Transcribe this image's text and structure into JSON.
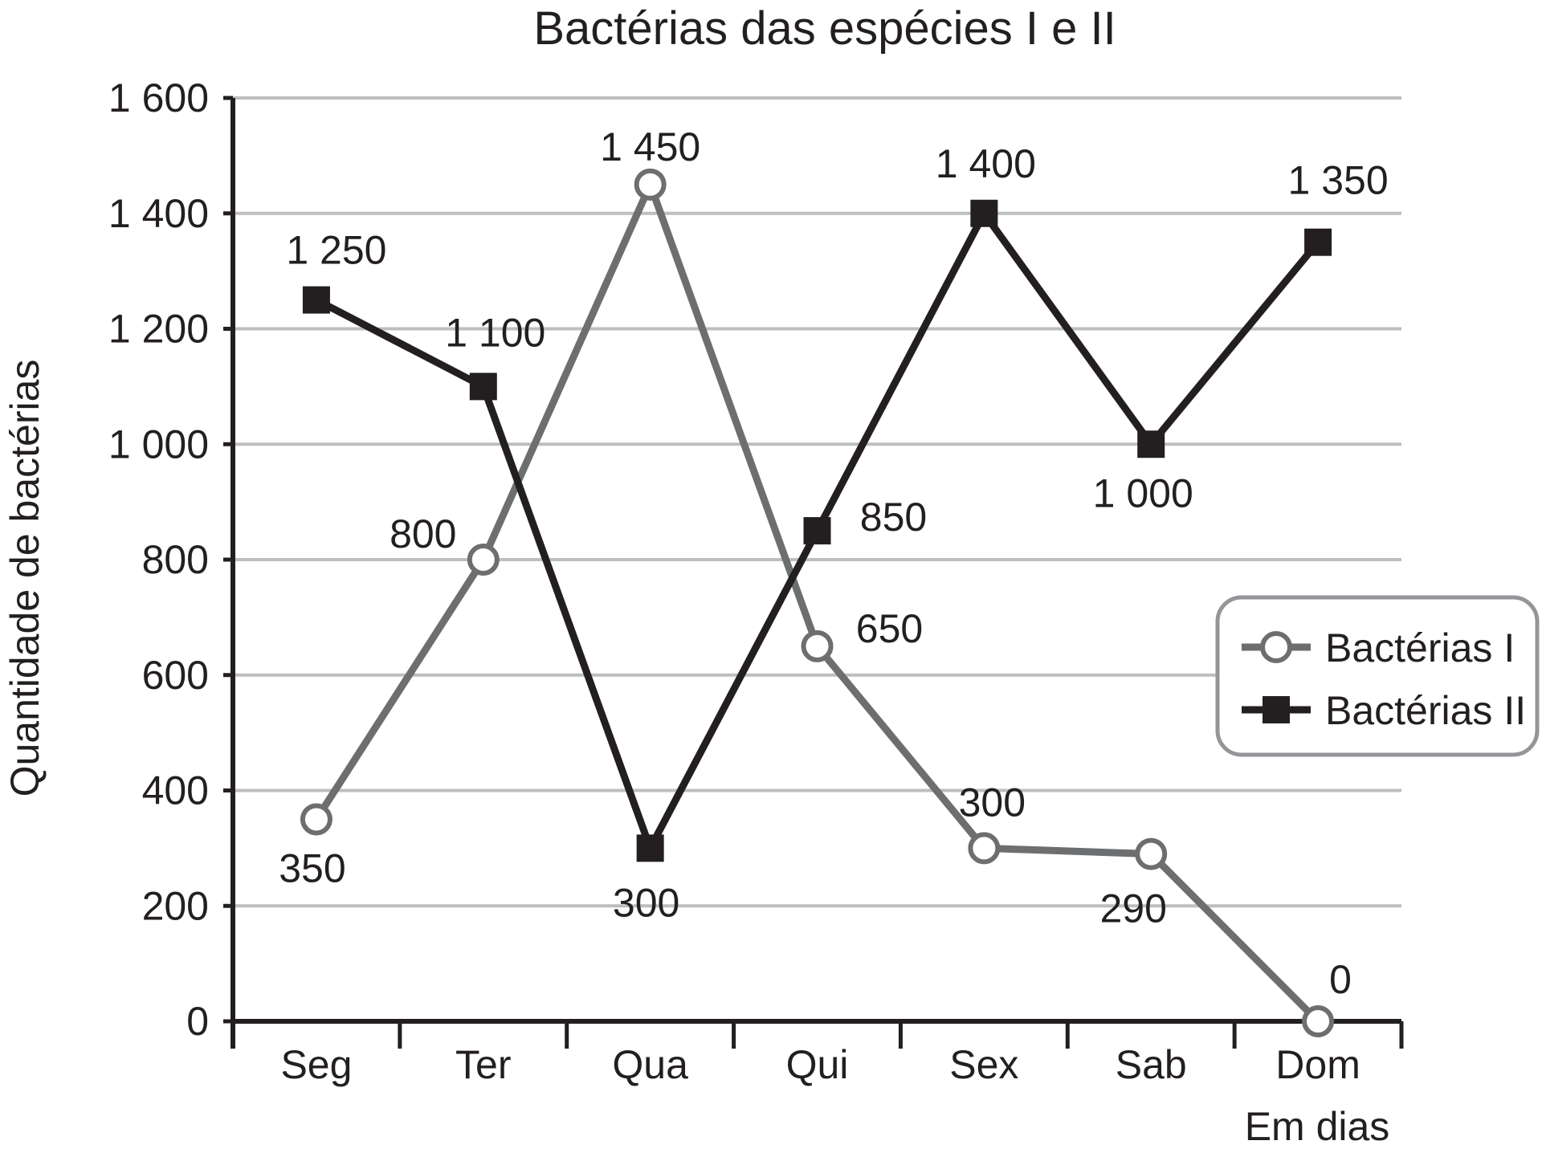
{
  "chart_data": {
    "type": "line",
    "title": "Bactérias das espécies I e II",
    "xlabel": "Em dias",
    "ylabel": "Quantidade de bactérias",
    "categories": [
      "Seg",
      "Ter",
      "Qua",
      "Qui",
      "Sex",
      "Sab",
      "Dom"
    ],
    "ylim": [
      0,
      1600
    ],
    "yticks": [
      0,
      200,
      400,
      600,
      800,
      1000,
      1200,
      1400,
      1600
    ],
    "ytick_labels": [
      "0",
      "200",
      "400",
      "600",
      "800",
      "1 000",
      "1 200",
      "1 400",
      "1 600"
    ],
    "grid": true,
    "legend_position": "right",
    "series": [
      {
        "name": "Bactérias I",
        "values": [
          350,
          800,
          1450,
          650,
          300,
          290,
          0
        ],
        "labels": [
          "350",
          "800",
          "1 450",
          "650",
          "300",
          "290",
          "0"
        ],
        "color": "#6d6e70",
        "marker": "open-circle"
      },
      {
        "name": "Bactérias II",
        "values": [
          1250,
          1100,
          300,
          850,
          1400,
          1000,
          1350
        ],
        "labels": [
          "1 250",
          "1 100",
          "300",
          "850",
          "1 400",
          "1 000",
          "1 350"
        ],
        "color": "#231f20",
        "marker": "filled-square"
      }
    ]
  }
}
